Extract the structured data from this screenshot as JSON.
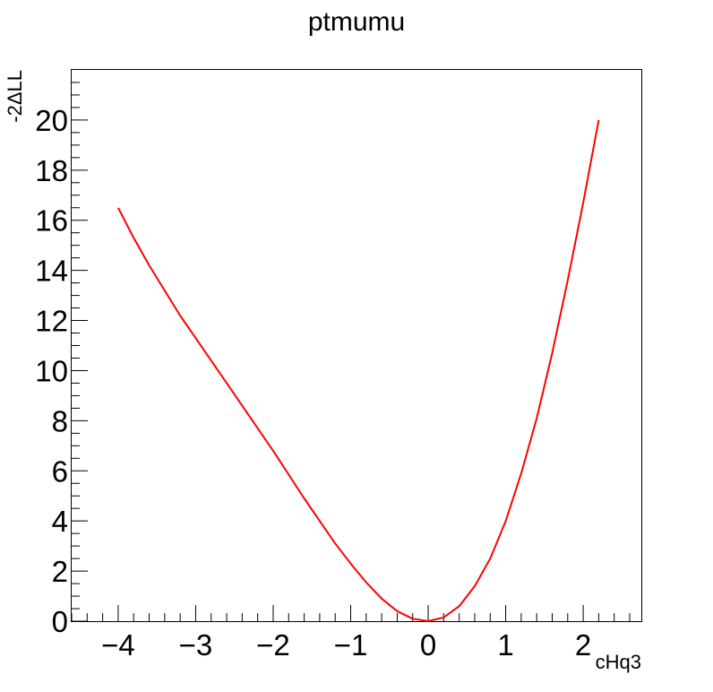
{
  "chart_data": {
    "type": "line",
    "title": "ptmumu",
    "xlabel": "cHq3",
    "ylabel": "-2ΔLL",
    "xlim": [
      -4.6,
      2.75
    ],
    "ylim": [
      0,
      22
    ],
    "xticks": [
      -4,
      -3,
      -2,
      -1,
      0,
      1,
      2
    ],
    "xtick_labels": [
      "−4",
      "−3",
      "−2",
      "−1",
      "0",
      "1",
      "2"
    ],
    "yticks": [
      0,
      2,
      4,
      6,
      8,
      10,
      12,
      14,
      16,
      18,
      20
    ],
    "ytick_labels": [
      "0",
      "2",
      "4",
      "6",
      "8",
      "10",
      "12",
      "14",
      "16",
      "18",
      "20"
    ],
    "grid": false,
    "series": [
      {
        "color": "#ff0000",
        "x": [
          -4.0,
          -3.8,
          -3.6,
          -3.4,
          -3.2,
          -3.0,
          -2.8,
          -2.6,
          -2.4,
          -2.2,
          -2.0,
          -1.8,
          -1.6,
          -1.4,
          -1.2,
          -1.0,
          -0.8,
          -0.6,
          -0.4,
          -0.2,
          0.0,
          0.2,
          0.4,
          0.6,
          0.8,
          1.0,
          1.2,
          1.4,
          1.6,
          1.8,
          2.0,
          2.2
        ],
        "y": [
          16.5,
          15.3,
          14.2,
          13.2,
          12.2,
          11.3,
          10.4,
          9.5,
          8.6,
          7.7,
          6.8,
          5.85,
          4.9,
          4.0,
          3.1,
          2.3,
          1.55,
          0.9,
          0.4,
          0.1,
          0.0,
          0.15,
          0.6,
          1.4,
          2.5,
          4.0,
          5.9,
          8.1,
          10.7,
          13.6,
          16.7,
          20.0
        ]
      }
    ]
  }
}
